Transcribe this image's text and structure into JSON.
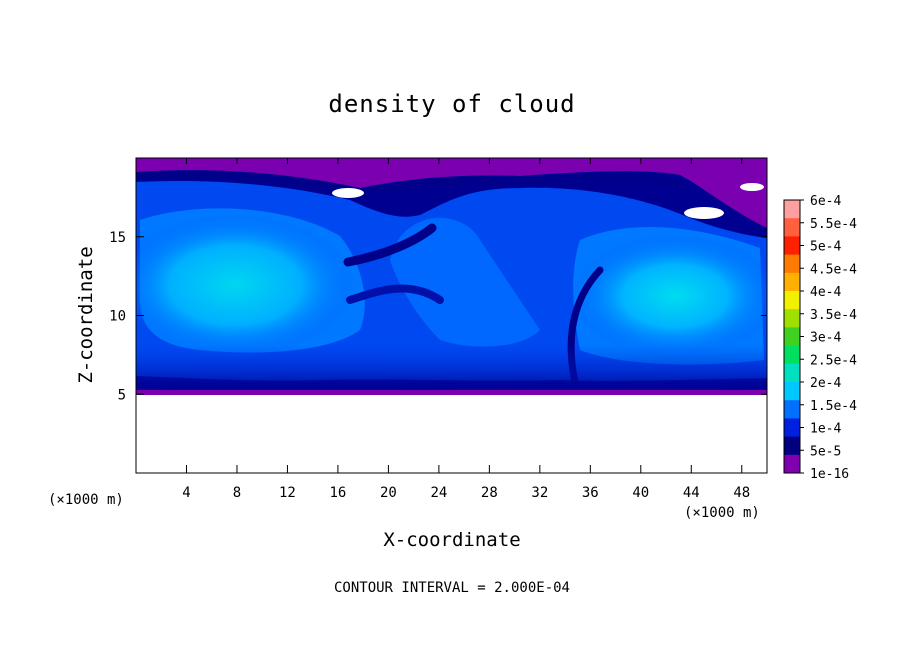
{
  "chart_data": {
    "type": "heatmap",
    "title": "density of cloud",
    "xlabel": "X-coordinate",
    "ylabel": "Z-coordinate",
    "x_unit_label": "(×1000 m)",
    "x_unit_label_right": "(×1000 m)",
    "xlim": [
      0,
      50
    ],
    "ylim": [
      0,
      20
    ],
    "x_ticks": [
      4,
      8,
      12,
      16,
      20,
      24,
      28,
      32,
      36,
      40,
      44,
      48
    ],
    "x_tick_labels": [
      "4",
      "8",
      "12",
      "16",
      "20",
      "24",
      "28",
      "32",
      "36",
      "40",
      "44",
      "48"
    ],
    "y_ticks": [
      5,
      10,
      15
    ],
    "y_tick_labels": [
      "5",
      "10",
      "15"
    ],
    "field_extent": {
      "z_min": 5,
      "z_max": 20
    },
    "colorbar": {
      "labels": [
        "6e-4",
        "5.5e-4",
        "5e-4",
        "4.5e-4",
        "4e-4",
        "3.5e-4",
        "3e-4",
        "2.5e-4",
        "2e-4",
        "1.5e-4",
        "1e-4",
        "5e-5",
        "1e-16"
      ],
      "colors": [
        "#ffa0a0",
        "#ff6040",
        "#ff2000",
        "#ff7a00",
        "#ffb000",
        "#f0f000",
        "#a0e000",
        "#40d020",
        "#00e060",
        "#00e0c0",
        "#00c8ff",
        "#0070ff",
        "#0020e0",
        "#000080",
        "#8000b0"
      ]
    },
    "contour_interval": "CONTOUR INTERVAL = 2.000E-04",
    "grid": false
  }
}
